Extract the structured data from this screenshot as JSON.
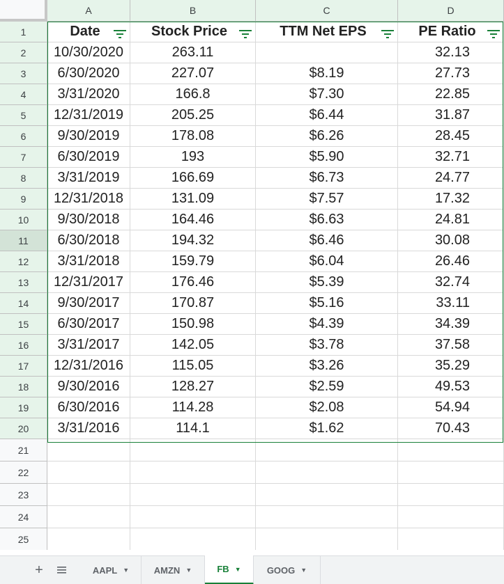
{
  "columns": [
    "A",
    "B",
    "C",
    "D"
  ],
  "headers": [
    "Date",
    "Stock Price",
    "TTM Net EPS",
    "PE Ratio"
  ],
  "rows": [
    [
      "10/30/2020",
      "263.11",
      "",
      "32.13"
    ],
    [
      "6/30/2020",
      "227.07",
      "$8.19",
      "27.73"
    ],
    [
      "3/31/2020",
      "166.8",
      "$7.30",
      "22.85"
    ],
    [
      "12/31/2019",
      "205.25",
      "$6.44",
      "31.87"
    ],
    [
      "9/30/2019",
      "178.08",
      "$6.26",
      "28.45"
    ],
    [
      "6/30/2019",
      "193",
      "$5.90",
      "32.71"
    ],
    [
      "3/31/2019",
      "166.69",
      "$6.73",
      "24.77"
    ],
    [
      "12/31/2018",
      "131.09",
      "$7.57",
      "17.32"
    ],
    [
      "9/30/2018",
      "164.46",
      "$6.63",
      "24.81"
    ],
    [
      "6/30/2018",
      "194.32",
      "$6.46",
      "30.08"
    ],
    [
      "3/31/2018",
      "159.79",
      "$6.04",
      "26.46"
    ],
    [
      "12/31/2017",
      "176.46",
      "$5.39",
      "32.74"
    ],
    [
      "9/30/2017",
      "170.87",
      "$5.16",
      "33.11"
    ],
    [
      "6/30/2017",
      "150.98",
      "$4.39",
      "34.39"
    ],
    [
      "3/31/2017",
      "142.05",
      "$3.78",
      "37.58"
    ],
    [
      "12/31/2016",
      "115.05",
      "$3.26",
      "35.29"
    ],
    [
      "9/30/2016",
      "128.27",
      "$2.59",
      "49.53"
    ],
    [
      "6/30/2016",
      "114.28",
      "$2.08",
      "54.94"
    ],
    [
      "3/31/2016",
      "114.1",
      "$1.62",
      "70.43"
    ]
  ],
  "row_numbers": [
    "1",
    "2",
    "3",
    "4",
    "5",
    "6",
    "7",
    "8",
    "9",
    "10",
    "11",
    "12",
    "13",
    "14",
    "15",
    "16",
    "17",
    "18",
    "19",
    "20",
    "21",
    "22",
    "23",
    "24",
    "25"
  ],
  "active_row": "11",
  "sheet_tabs": [
    {
      "label": "AAPL",
      "active": false
    },
    {
      "label": "AMZN",
      "active": false
    },
    {
      "label": "FB",
      "active": true
    },
    {
      "label": "GOOG",
      "active": false
    }
  ],
  "tabbar_icons": {
    "add": "add-sheet-icon",
    "list": "all-sheets-icon"
  },
  "colors": {
    "accent": "#188038",
    "selected_header": "#e6f4ea",
    "grid_line": "#d9d9d9"
  }
}
